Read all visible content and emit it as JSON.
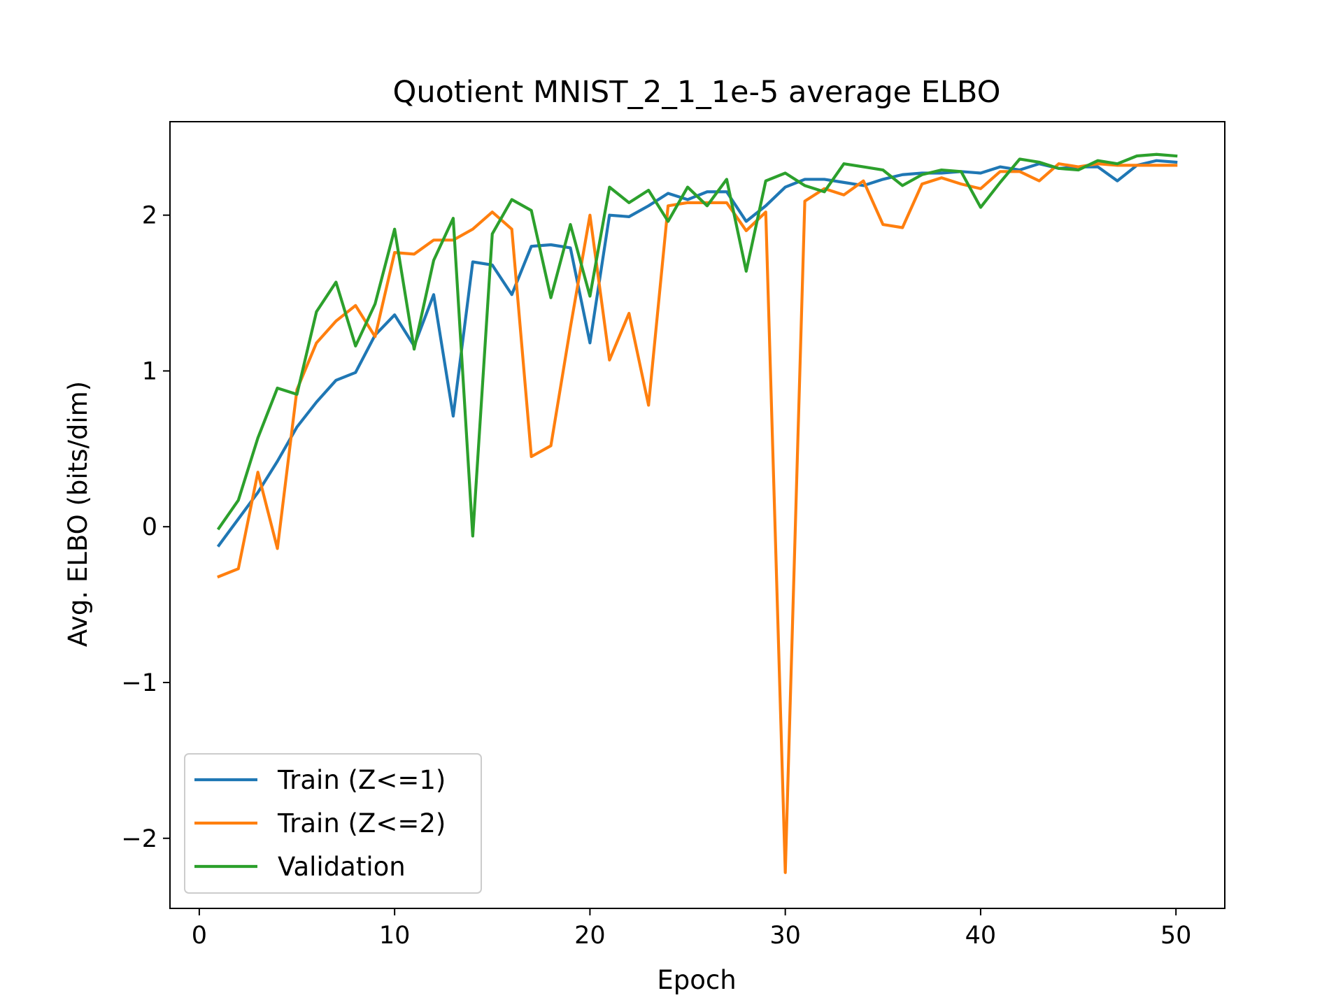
{
  "chart_data": {
    "type": "line",
    "title": "Quotient MNIST_2_1_1e-5 average ELBO",
    "xlabel": "Epoch",
    "ylabel": "Avg. ELBO (bits/dim)",
    "xlim": [
      -1.5,
      52.5
    ],
    "ylim": [
      -2.45,
      2.6
    ],
    "xticks": [
      0,
      10,
      20,
      30,
      40,
      50
    ],
    "xtick_labels": [
      "0",
      "10",
      "20",
      "30",
      "40",
      "50"
    ],
    "yticks": [
      -2,
      -1,
      0,
      1,
      2
    ],
    "ytick_labels": [
      "−2",
      "−1",
      "0",
      "1",
      "2"
    ],
    "grid": false,
    "legend_position": "lower-left",
    "x": [
      1,
      2,
      3,
      4,
      5,
      6,
      7,
      8,
      9,
      10,
      11,
      12,
      13,
      14,
      15,
      16,
      17,
      18,
      19,
      20,
      21,
      22,
      23,
      24,
      25,
      26,
      27,
      28,
      29,
      30,
      31,
      32,
      33,
      34,
      35,
      36,
      37,
      38,
      39,
      40,
      41,
      42,
      43,
      44,
      45,
      46,
      47,
      48,
      49,
      50
    ],
    "series": [
      {
        "name": "Train (Z<=1)",
        "color": "#1f77b4",
        "values": [
          -0.12,
          0.05,
          0.22,
          0.42,
          0.64,
          0.8,
          0.94,
          0.99,
          1.23,
          1.36,
          1.16,
          1.49,
          0.71,
          1.7,
          1.68,
          1.49,
          1.8,
          1.81,
          1.79,
          1.18,
          2.0,
          1.99,
          2.06,
          2.14,
          2.1,
          2.15,
          2.15,
          1.96,
          2.06,
          2.18,
          2.23,
          2.23,
          2.21,
          2.19,
          2.23,
          2.26,
          2.27,
          2.27,
          2.28,
          2.27,
          2.31,
          2.29,
          2.33,
          2.3,
          2.31,
          2.31,
          2.22,
          2.32,
          2.35,
          2.34
        ]
      },
      {
        "name": "Train (Z<=2)",
        "color": "#ff7f0e",
        "values": [
          -0.32,
          -0.27,
          0.35,
          -0.14,
          0.88,
          1.18,
          1.32,
          1.42,
          1.22,
          1.76,
          1.75,
          1.84,
          1.84,
          1.91,
          2.02,
          1.91,
          0.45,
          0.52,
          1.28,
          2.0,
          1.07,
          1.37,
          0.78,
          2.06,
          2.08,
          2.08,
          2.08,
          1.9,
          2.02,
          -2.22,
          2.09,
          2.17,
          2.13,
          2.22,
          1.94,
          1.92,
          2.2,
          2.24,
          2.2,
          2.17,
          2.28,
          2.28,
          2.22,
          2.33,
          2.31,
          2.33,
          2.32,
          2.32,
          2.32,
          2.32
        ]
      },
      {
        "name": "Validation",
        "color": "#2ca02c",
        "values": [
          -0.01,
          0.17,
          0.57,
          0.89,
          0.85,
          1.38,
          1.57,
          1.16,
          1.43,
          1.91,
          1.14,
          1.71,
          1.98,
          -0.06,
          1.88,
          2.1,
          2.03,
          1.47,
          1.94,
          1.48,
          2.18,
          2.08,
          2.16,
          1.96,
          2.18,
          2.06,
          2.23,
          1.64,
          2.22,
          2.27,
          2.19,
          2.15,
          2.33,
          2.31,
          2.29,
          2.19,
          2.26,
          2.29,
          2.28,
          2.05,
          2.21,
          2.36,
          2.34,
          2.3,
          2.29,
          2.35,
          2.33,
          2.38,
          2.39,
          2.38
        ]
      }
    ]
  }
}
